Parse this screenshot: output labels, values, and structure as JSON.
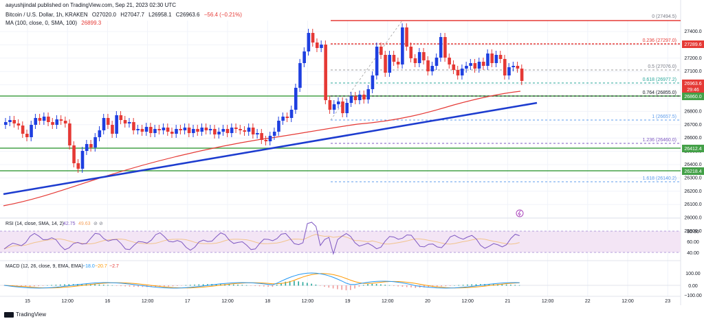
{
  "header": {
    "top": "aayushjindal published on TradingView.com, Sep 21, 2023 02:30 UTC",
    "symbol": "Bitcoin / U.S. Dollar, 1h, KRAKEN",
    "ohlc": {
      "o": "O27020.0",
      "h": "H27047.7",
      "l": "L26958.1",
      "c": "C26963.6",
      "chg": "−56.4 (−0.21%)"
    },
    "ma_label": "MA (100, close, 0, SMA, 100)",
    "ma_value": "26899.3"
  },
  "indicators": {
    "rsi_label": "RSI (14, close, SMA, 14, 2)",
    "rsi_values": [
      "42.75",
      "49.63",
      "⊘",
      "⊘"
    ],
    "macd_label": "MACD (12, 26, close, 9, EMA, EMA)",
    "macd_values": [
      "−18.0",
      "−20.7",
      "−2.7"
    ]
  },
  "price_axis": {
    "ticks": [
      "27400.0",
      "27300.0",
      "27200.0",
      "27100.0",
      "27000.0",
      "26900.0",
      "26800.0",
      "26700.0",
      "26600.0",
      "26500.0",
      "26400.0",
      "26300.0",
      "26200.0",
      "26100.0",
      "26000.0",
      "25900.0"
    ],
    "price_tags": [
      {
        "label": "27289.6",
        "kind": "resistance",
        "color": "#e53935"
      },
      {
        "label": "26963.6",
        "kind": "last",
        "color": "#e53935"
      },
      {
        "label": "29:46",
        "kind": "countdown",
        "color": "#e53935"
      },
      {
        "label": "26860.0",
        "kind": "support",
        "color": "#43a047"
      },
      {
        "label": "26412.4",
        "kind": "support",
        "color": "#43a047"
      },
      {
        "label": "26218.4",
        "kind": "support",
        "color": "#43a047"
      }
    ],
    "rsi_ticks": [
      "80.00",
      "60.00",
      "40.00"
    ],
    "macd_ticks": [
      "100.00",
      "0.00",
      "−100.00"
    ]
  },
  "fibonacci": [
    {
      "label": "0 (27494.5)",
      "color": "#787b86"
    },
    {
      "label": "0.236 (27297.0)",
      "color": "#e53935"
    },
    {
      "label": "0.5 (27076.0)",
      "color": "#787b86"
    },
    {
      "label": "0.618 (26977.2)",
      "color": "#26a69a"
    },
    {
      "label": "0.764 (26855.0)",
      "color": "#131722"
    },
    {
      "label": "1 (26657.5)",
      "color": "#5d9cec"
    },
    {
      "label": "1.236 (26460.0)",
      "color": "#7e57c2"
    },
    {
      "label": "1.618 (26140.2)",
      "color": "#5d9cec"
    }
  ],
  "time_axis": [
    "15",
    "12:00",
    "16",
    "12:00",
    "17",
    "12:00",
    "18",
    "12:00",
    "19",
    "12:00",
    "20",
    "12:00",
    "21",
    "12:00",
    "22",
    "12:00",
    "23"
  ],
  "footer": {
    "brand": "TradingView"
  },
  "colors": {
    "up": "#1e3fe0",
    "down": "#e53935",
    "ma": "#e53935",
    "trend": "#1d3ccf",
    "support": "#43a047",
    "rsi_fill": "#f3e5f5",
    "rsi_line": "#7e57c2",
    "macd": "#2196f3",
    "signal": "#ff9800"
  }
}
